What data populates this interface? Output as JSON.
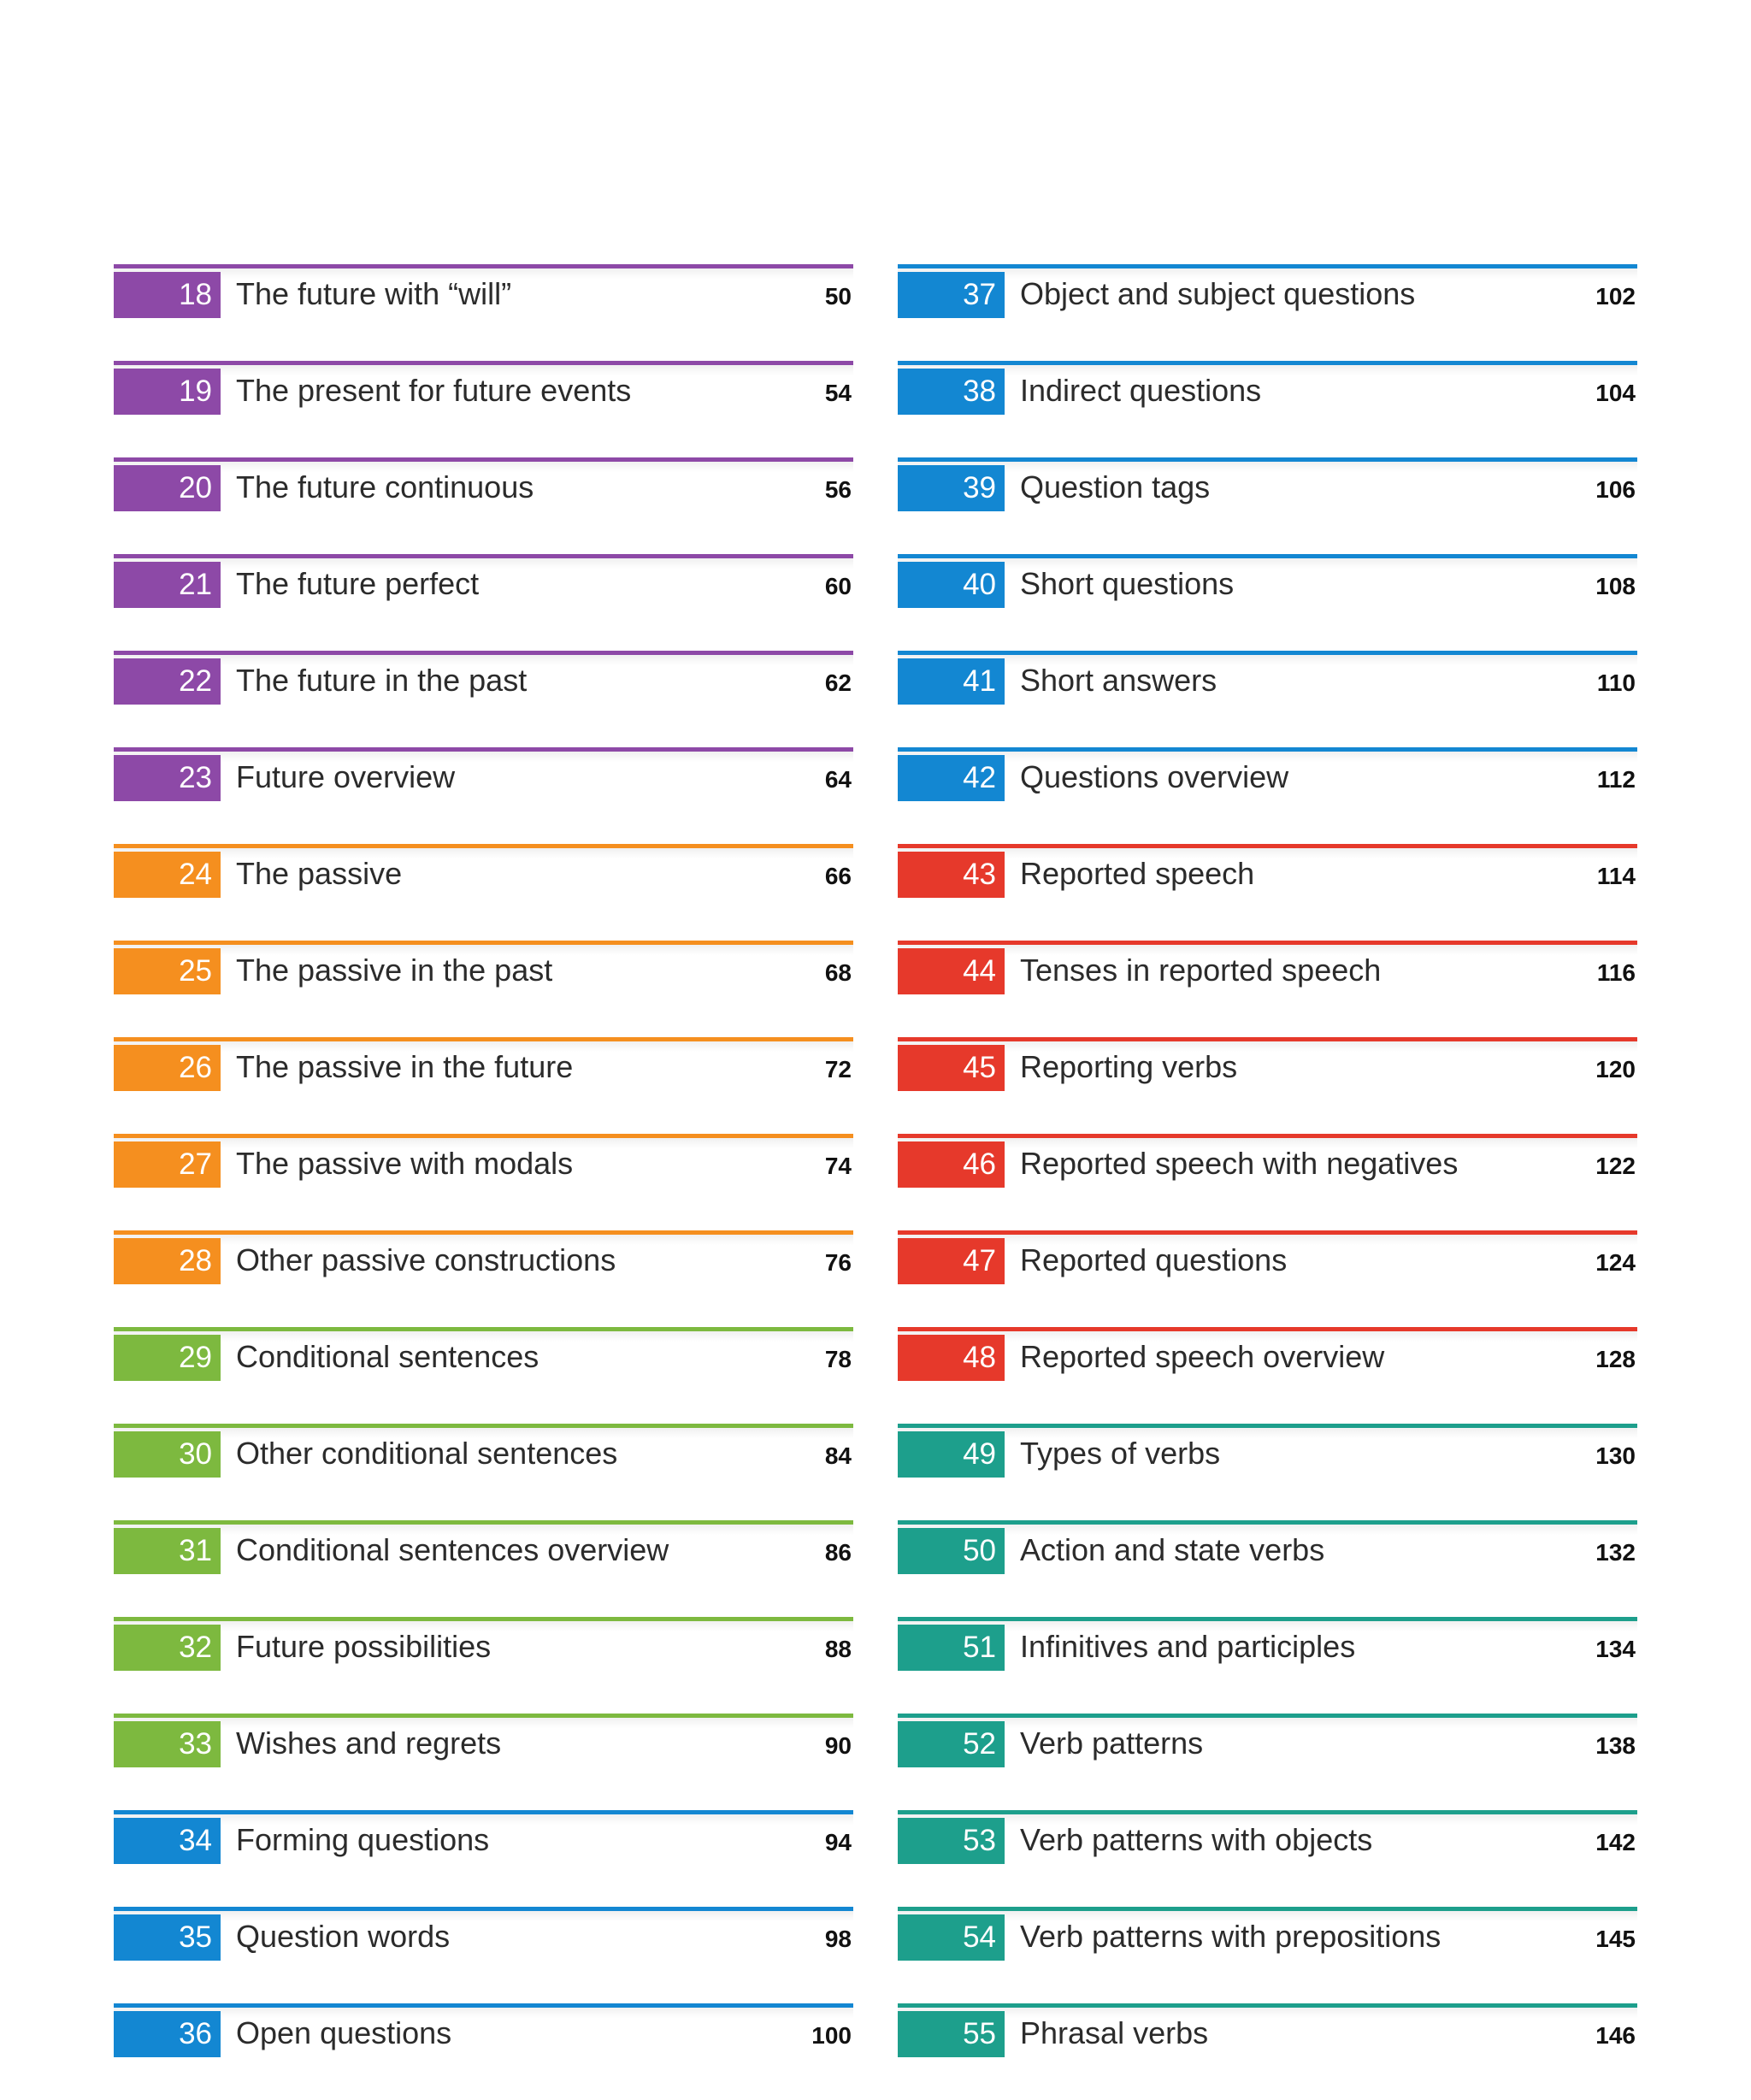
{
  "colors": {
    "purple": "#8d49a7",
    "orange": "#f58f1f",
    "green": "#7db93f",
    "blue": "#1387d2",
    "red": "#e6392b",
    "teal": "#1d9f8c"
  },
  "columns": [
    {
      "entries": [
        {
          "num": "18",
          "title": "The future with “will”",
          "page": "50",
          "color": "purple"
        },
        {
          "num": "19",
          "title": "The present for future events",
          "page": "54",
          "color": "purple"
        },
        {
          "num": "20",
          "title": "The future continuous",
          "page": "56",
          "color": "purple"
        },
        {
          "num": "21",
          "title": "The future perfect",
          "page": "60",
          "color": "purple"
        },
        {
          "num": "22",
          "title": "The future in the past",
          "page": "62",
          "color": "purple"
        },
        {
          "num": "23",
          "title": "Future overview",
          "page": "64",
          "color": "purple"
        },
        {
          "num": "24",
          "title": "The passive",
          "page": "66",
          "color": "orange"
        },
        {
          "num": "25",
          "title": "The passive in the past",
          "page": "68",
          "color": "orange"
        },
        {
          "num": "26",
          "title": "The passive in the future",
          "page": "72",
          "color": "orange"
        },
        {
          "num": "27",
          "title": "The passive with modals",
          "page": "74",
          "color": "orange"
        },
        {
          "num": "28",
          "title": "Other passive constructions",
          "page": "76",
          "color": "orange"
        },
        {
          "num": "29",
          "title": "Conditional sentences",
          "page": "78",
          "color": "green"
        },
        {
          "num": "30",
          "title": "Other conditional sentences",
          "page": "84",
          "color": "green"
        },
        {
          "num": "31",
          "title": "Conditional sentences overview",
          "page": "86",
          "color": "green"
        },
        {
          "num": "32",
          "title": "Future possibilities",
          "page": "88",
          "color": "green"
        },
        {
          "num": "33",
          "title": "Wishes and regrets",
          "page": "90",
          "color": "green"
        },
        {
          "num": "34",
          "title": "Forming questions",
          "page": "94",
          "color": "blue"
        },
        {
          "num": "35",
          "title": "Question words",
          "page": "98",
          "color": "blue"
        },
        {
          "num": "36",
          "title": "Open questions",
          "page": "100",
          "color": "blue"
        }
      ]
    },
    {
      "entries": [
        {
          "num": "37",
          "title": "Object and subject questions",
          "page": "102",
          "color": "blue"
        },
        {
          "num": "38",
          "title": "Indirect questions",
          "page": "104",
          "color": "blue"
        },
        {
          "num": "39",
          "title": "Question tags",
          "page": "106",
          "color": "blue"
        },
        {
          "num": "40",
          "title": "Short questions",
          "page": "108",
          "color": "blue"
        },
        {
          "num": "41",
          "title": "Short answers",
          "page": "110",
          "color": "blue"
        },
        {
          "num": "42",
          "title": "Questions overview",
          "page": "112",
          "color": "blue"
        },
        {
          "num": "43",
          "title": "Reported speech",
          "page": "114",
          "color": "red"
        },
        {
          "num": "44",
          "title": "Tenses in reported speech",
          "page": "116",
          "color": "red"
        },
        {
          "num": "45",
          "title": "Reporting verbs",
          "page": "120",
          "color": "red"
        },
        {
          "num": "46",
          "title": "Reported speech with negatives",
          "page": "122",
          "color": "red"
        },
        {
          "num": "47",
          "title": "Reported questions",
          "page": "124",
          "color": "red"
        },
        {
          "num": "48",
          "title": "Reported speech overview",
          "page": "128",
          "color": "red"
        },
        {
          "num": "49",
          "title": "Types of verbs",
          "page": "130",
          "color": "teal"
        },
        {
          "num": "50",
          "title": "Action and state verbs",
          "page": "132",
          "color": "teal"
        },
        {
          "num": "51",
          "title": "Infinitives and participles",
          "page": "134",
          "color": "teal"
        },
        {
          "num": "52",
          "title": "Verb patterns",
          "page": "138",
          "color": "teal"
        },
        {
          "num": "53",
          "title": "Verb patterns with objects",
          "page": "142",
          "color": "teal"
        },
        {
          "num": "54",
          "title": "Verb patterns with prepositions",
          "page": "145",
          "color": "teal"
        },
        {
          "num": "55",
          "title": "Phrasal verbs",
          "page": "146",
          "color": "teal"
        }
      ]
    }
  ]
}
